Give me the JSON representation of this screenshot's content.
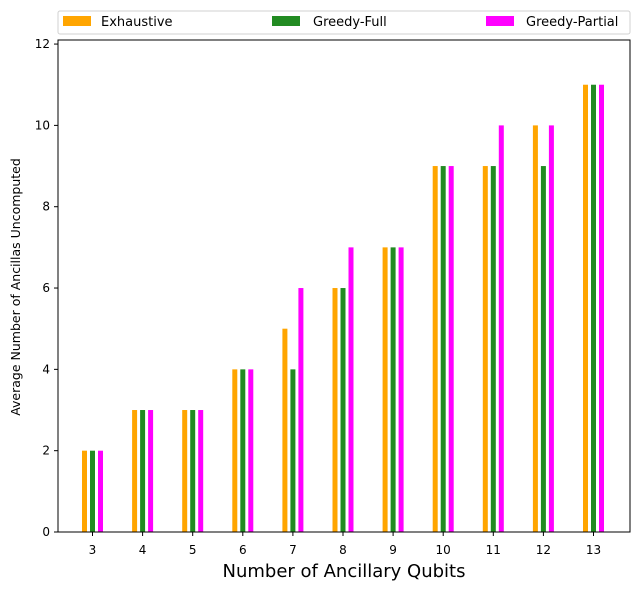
{
  "chart_data": {
    "type": "bar",
    "xlabel": "Number of Ancillary Qubits",
    "ylabel": "Average Number of Ancillas Uncomputed",
    "categories": [
      "3",
      "4",
      "5",
      "6",
      "7",
      "8",
      "9",
      "10",
      "11",
      "12",
      "13"
    ],
    "series": [
      {
        "name": "Exhaustive",
        "color": "#FFA500",
        "values": [
          2,
          3,
          3,
          4,
          5,
          6,
          7,
          9,
          9,
          10,
          11
        ]
      },
      {
        "name": "Greedy-Full",
        "color": "#228B22",
        "values": [
          2,
          3,
          3,
          4,
          4,
          6,
          7,
          9,
          9,
          9,
          11
        ]
      },
      {
        "name": "Greedy-Partial",
        "color": "#FF00FF",
        "values": [
          2,
          3,
          3,
          4,
          6,
          7,
          7,
          9,
          10,
          10,
          11
        ]
      }
    ],
    "ylim": [
      0,
      12.1
    ],
    "yticks": [
      0,
      2,
      4,
      6,
      8,
      10,
      12
    ],
    "legend_position": "top",
    "grid": false
  }
}
